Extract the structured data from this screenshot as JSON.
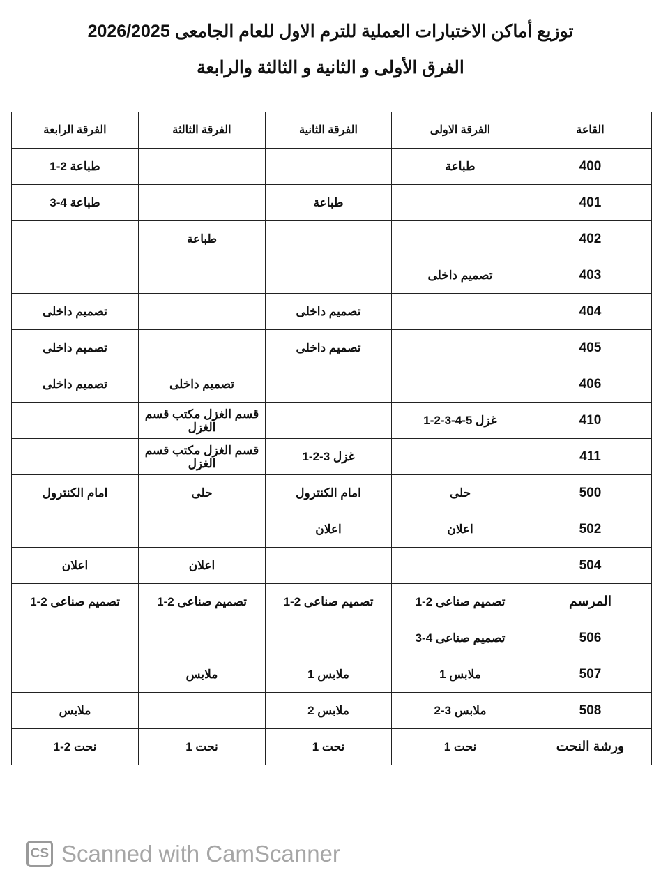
{
  "document": {
    "title_line1": "توزيع أماكن الاختبارات العملية للترم الاول للعام الجامعى 2026/2025",
    "title_line2": "الفرق الأولى و الثانية و الثالثة والرابعة"
  },
  "table": {
    "headers": [
      "القاعة",
      "الفرقة الاولى",
      "الفرقة الثانية",
      "الفرقة الثالثة",
      "الفرقة الرابعة"
    ],
    "rows": [
      [
        "400",
        "طباعة",
        "",
        "",
        "طباعة 2-1"
      ],
      [
        "401",
        "",
        "طباعة",
        "",
        "طباعة 4-3"
      ],
      [
        "402",
        "",
        "",
        "طباعة",
        ""
      ],
      [
        "403",
        "تصميم داخلى",
        "",
        "",
        ""
      ],
      [
        "404",
        "",
        "تصميم داخلى",
        "",
        "تصميم داخلى"
      ],
      [
        "405",
        "",
        "تصميم داخلى",
        "",
        "تصميم داخلى"
      ],
      [
        "406",
        "",
        "",
        "تصميم داخلى",
        "تصميم داخلى"
      ],
      [
        "410",
        "غزل 5-4-3-2-1",
        "",
        "قسم الغزل مكتب قسم الغزل",
        ""
      ],
      [
        "411",
        "",
        "غزل 3-2-1",
        "قسم الغزل مكتب قسم الغزل",
        ""
      ],
      [
        "500",
        "حلى",
        "امام الكنترول",
        "حلى",
        "امام الكنترول"
      ],
      [
        "502",
        "اعلان",
        "اعلان",
        "",
        ""
      ],
      [
        "504",
        "",
        "",
        "اعلان",
        "اعلان"
      ],
      [
        "المرسم",
        "تصميم صناعى 2-1",
        "تصميم صناعى 2-1",
        "تصميم صناعى 2-1",
        "تصميم صناعى 2-1"
      ],
      [
        "506",
        "تصميم صناعى 4-3",
        "",
        "",
        ""
      ],
      [
        "507",
        "ملابس 1",
        "ملابس 1",
        "ملابس",
        ""
      ],
      [
        "508",
        "ملابس 3-2",
        "ملابس 2",
        "",
        "ملابس"
      ],
      [
        "ورشة النحت",
        "نحت 1",
        "نحت 1",
        "نحت 1",
        "نحت 2-1"
      ]
    ]
  },
  "watermark": {
    "logo_text": "CS",
    "text": "Scanned with CamScanner",
    "color": "#a6a6a6"
  }
}
